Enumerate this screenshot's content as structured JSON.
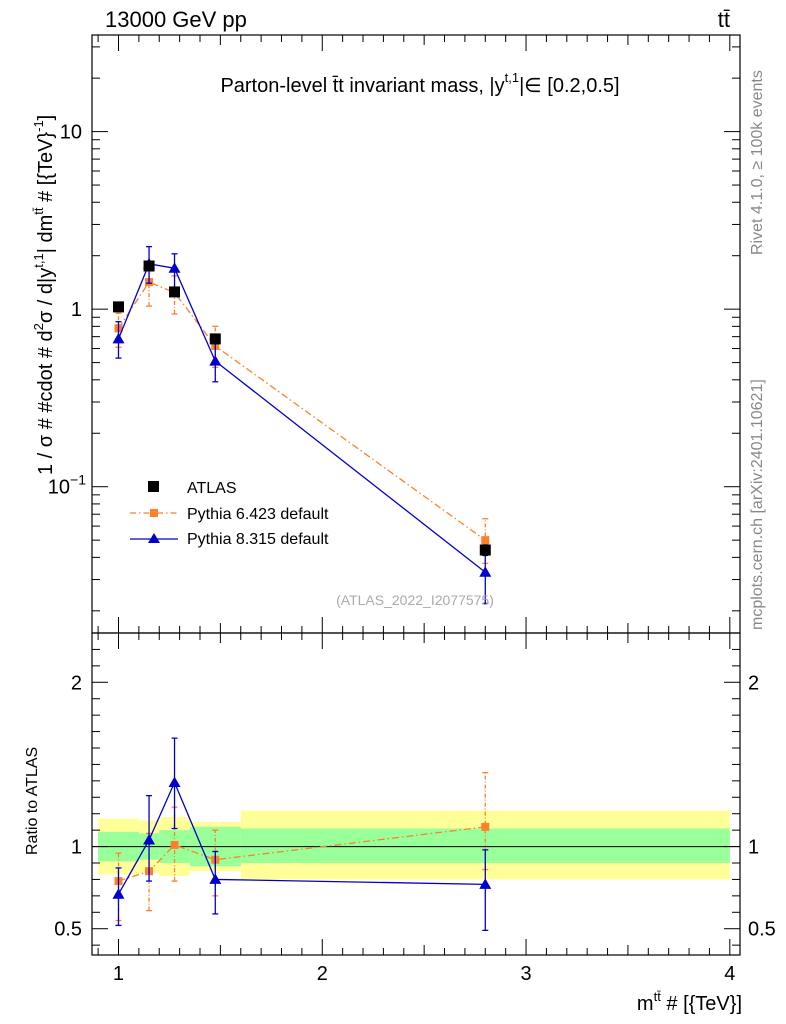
{
  "header": {
    "energy_label": "13000 GeV pp",
    "process_label": "tt̄"
  },
  "side_labels": {
    "rivet": "Rivet 4.1.0, ≥ 100k events",
    "mcplots": "mcplots.cern.ch [arXiv:2401.10621]"
  },
  "chart_data": [
    {
      "type": "scatter",
      "panel": "main",
      "title": "Parton-level t̄t invariant mass, |y",
      "title_sup": "t,1",
      "title_tail": "|∈ [0.2,0.5]",
      "ylabel": "1 / σ # #cdot # d²σ / d|y^{t,1}| dm^{tt̄} # [{TeV}⁻¹]",
      "ylabel_parts": [
        "1 / σ # #cdot # d",
        "2",
        "σ / d|y",
        "t,1",
        "| dm",
        "tt̄",
        " # [{TeV}",
        "-1",
        "]"
      ],
      "xlabel": "m^{tt̄} # [{TeV}]",
      "yscale": "log",
      "xlim": [
        0.87,
        4.05
      ],
      "ylim": [
        0.015,
        35
      ],
      "yticks_major": [
        {
          "value": 10,
          "label": "10"
        },
        {
          "value": 1,
          "label": "1"
        },
        {
          "value": 0.1,
          "label": "10",
          "sup": "−1"
        }
      ],
      "watermark": "(ATLAS_2022_I2077575)",
      "series": [
        {
          "name": "ATLAS",
          "color": "#000000",
          "marker": "square",
          "x": [
            1.0,
            1.15,
            1.275,
            1.475,
            2.8
          ],
          "y": [
            1.03,
            1.75,
            1.25,
            0.68,
            0.044
          ],
          "yerr_lo": [
            0.05,
            0.07,
            0.05,
            0.03,
            0.003
          ],
          "yerr_hi": [
            0.05,
            0.07,
            0.05,
            0.03,
            0.003
          ]
        },
        {
          "name": "Pythia 6.423 default",
          "color": "#ff7f2a",
          "marker": "square-small",
          "line": "dashdot",
          "x": [
            1.0,
            1.15,
            1.275,
            1.475,
            2.8
          ],
          "y": [
            0.78,
            1.42,
            1.24,
            0.62,
            0.05
          ],
          "yerr_lo": [
            0.17,
            0.38,
            0.3,
            0.15,
            0.013
          ],
          "yerr_hi": [
            0.17,
            0.38,
            0.3,
            0.18,
            0.016
          ]
        },
        {
          "name": "Pythia 8.315 default",
          "color": "#0000cc",
          "marker": "triangle",
          "line": "solid",
          "x": [
            1.0,
            1.15,
            1.275,
            1.475,
            2.8
          ],
          "y": [
            0.68,
            1.8,
            1.7,
            0.51,
            0.033
          ],
          "yerr_lo": [
            0.15,
            0.4,
            0.38,
            0.12,
            0.011
          ],
          "yerr_hi": [
            0.17,
            0.45,
            0.35,
            0.13,
            0.013
          ]
        }
      ]
    },
    {
      "type": "scatter",
      "panel": "ratio",
      "ylabel": "Ratio to ATLAS",
      "xlabel": "m^{tt̄} # [{TeV}]",
      "xlim": [
        0.87,
        4.05
      ],
      "ylim": [
        0.34,
        2.3
      ],
      "xticks_major": [
        {
          "value": 1,
          "label": "1"
        },
        {
          "value": 2,
          "label": "2"
        },
        {
          "value": 3,
          "label": "3"
        },
        {
          "value": 4,
          "label": "4"
        }
      ],
      "yticks_major": [
        {
          "value": 0.5,
          "label": "0.5"
        },
        {
          "value": 1,
          "label": "1"
        },
        {
          "value": 2,
          "label": "2"
        }
      ],
      "bands": [
        {
          "x": [
            0.9,
            1.1
          ],
          "inner": [
            0.91,
            1.09
          ],
          "outer": [
            0.83,
            1.17
          ]
        },
        {
          "x": [
            1.1,
            1.2
          ],
          "inner": [
            0.92,
            1.08
          ],
          "outer": [
            0.84,
            1.16
          ]
        },
        {
          "x": [
            1.2,
            1.35
          ],
          "inner": [
            0.9,
            1.1
          ],
          "outer": [
            0.82,
            1.18
          ]
        },
        {
          "x": [
            1.35,
            1.6
          ],
          "inner": [
            0.88,
            1.12
          ],
          "outer": [
            0.85,
            1.15
          ]
        },
        {
          "x": [
            1.6,
            4.0
          ],
          "inner": [
            0.9,
            1.11
          ],
          "outer": [
            0.8,
            1.22
          ]
        }
      ],
      "series": [
        {
          "name": "Pythia 6.423 default",
          "color": "#ff7f2a",
          "marker": "square-small",
          "line": "dashdot",
          "x": [
            1.0,
            1.15,
            1.275,
            1.475,
            2.8
          ],
          "y": [
            0.79,
            0.85,
            1.01,
            0.92,
            1.12
          ],
          "yerr_lo": [
            0.24,
            0.24,
            0.22,
            0.22,
            0.26
          ],
          "yerr_hi": [
            0.17,
            0.23,
            0.23,
            0.18,
            0.33
          ]
        },
        {
          "name": "Pythia 8.315 default",
          "color": "#0000cc",
          "marker": "triangle",
          "line": "solid",
          "x": [
            1.0,
            1.15,
            1.275,
            1.475,
            2.8
          ],
          "y": [
            0.71,
            1.04,
            1.39,
            0.8,
            0.77
          ],
          "yerr_lo": [
            0.19,
            0.25,
            0.28,
            0.21,
            0.28
          ],
          "yerr_hi": [
            0.16,
            0.27,
            0.27,
            0.17,
            0.21
          ]
        }
      ]
    }
  ]
}
